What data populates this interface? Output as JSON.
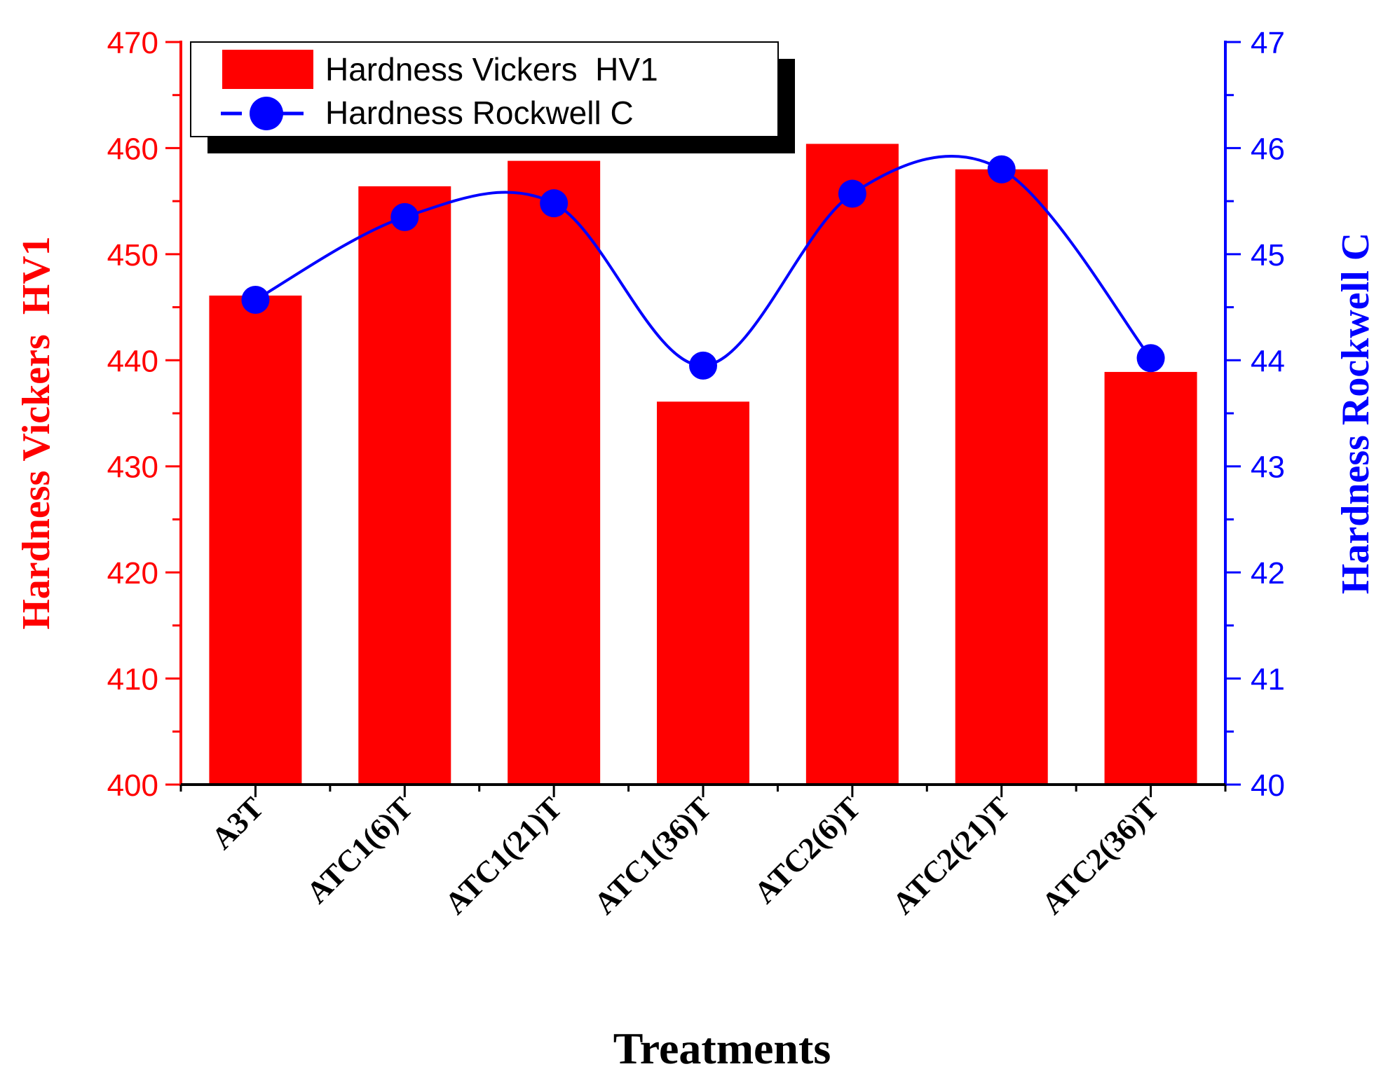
{
  "chart_data": {
    "type": "bar",
    "title": "",
    "categories": [
      "A3T",
      "ATC1(6)T",
      "ATC1(21)T",
      "ATC1(36)T",
      "ATC2(6)T",
      "ATC2(21)T",
      "ATC2(36)T"
    ],
    "series": [
      {
        "name": "Hardness Vickers  HV1",
        "type": "bar",
        "axis": "left",
        "color": "#ff0000",
        "values": [
          446.1,
          456.4,
          458.8,
          436.1,
          460.4,
          458.0,
          438.9
        ]
      },
      {
        "name": "Hardness Rockwell C",
        "type": "line",
        "axis": "right",
        "color": "#0000ff",
        "smooth": true,
        "marker": "circle",
        "values": [
          44.57,
          45.35,
          45.48,
          43.95,
          45.57,
          45.8,
          44.02
        ]
      }
    ],
    "xlabel": "Treatments",
    "ylabel": "Hardness Vickers  HV1",
    "y2label": "Hardness Rockwell C",
    "ylim": [
      400,
      470
    ],
    "y2lim": [
      40,
      47
    ],
    "yticks": [
      "400",
      "410",
      "420",
      "430",
      "440",
      "450",
      "460",
      "470"
    ],
    "y2ticks": [
      "40",
      "41",
      "42",
      "43",
      "44",
      "45",
      "46",
      "47"
    ],
    "legend_position": "top-left",
    "grid": false,
    "colors": {
      "left_axis": "#ff0000",
      "right_axis": "#0000ff",
      "bottom_axis": "#000000"
    }
  }
}
